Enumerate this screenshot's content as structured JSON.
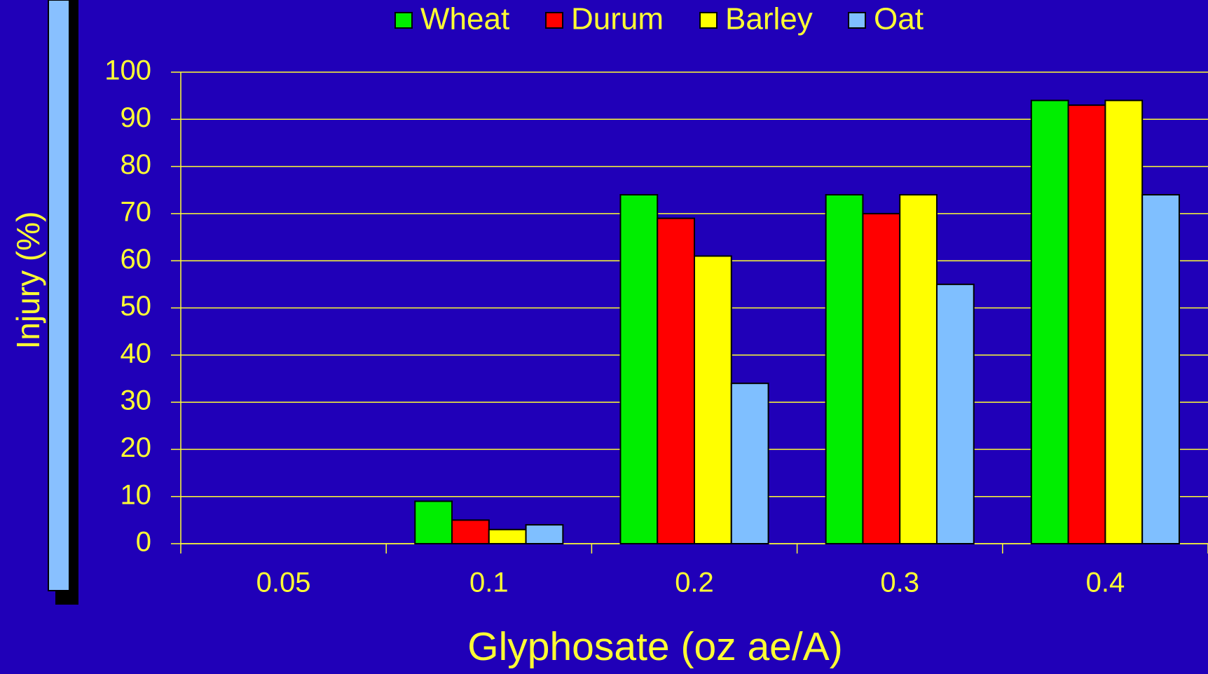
{
  "chart_data": {
    "type": "bar",
    "x_label": "Glyphosate (oz ae/A)",
    "y_label": "Injury (%)",
    "categories": [
      "0.05",
      "0.1",
      "0.2",
      "0.3",
      "0.4"
    ],
    "series": [
      {
        "name": "Wheat",
        "color": "#00ee00",
        "values": [
          0,
          9,
          74,
          74,
          94
        ]
      },
      {
        "name": "Durum",
        "color": "#ff0000",
        "values": [
          0,
          5,
          69,
          70,
          93
        ]
      },
      {
        "name": "Barley",
        "color": "#ffff00",
        "values": [
          0,
          3,
          61,
          74,
          94
        ]
      },
      {
        "name": "Oat",
        "color": "#7fbfff",
        "values": [
          0,
          4,
          34,
          55,
          74
        ]
      }
    ],
    "ylim": [
      0,
      100
    ],
    "yticks": [
      0,
      10,
      20,
      30,
      40,
      50,
      60,
      70,
      80,
      90,
      100
    ],
    "grid": true,
    "legend": "top"
  }
}
